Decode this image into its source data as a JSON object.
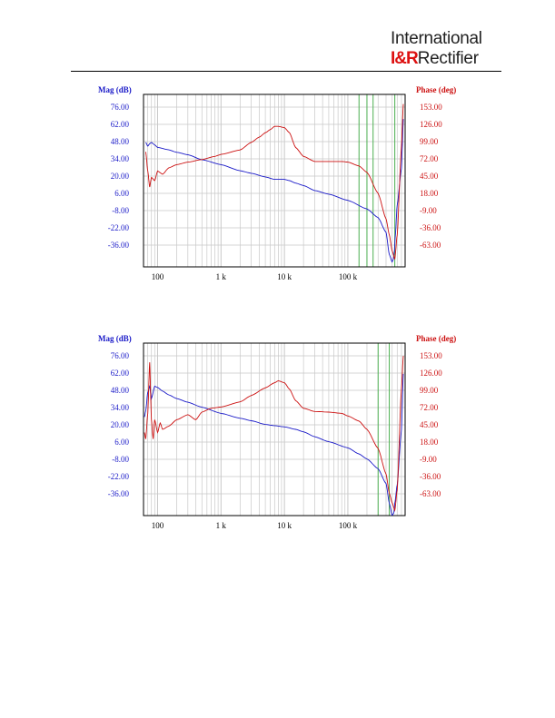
{
  "header": {
    "logo_line1": "International",
    "logo_mark": "I&R",
    "logo_line2_text": "Rectifier"
  },
  "colors": {
    "magnitude": "#1a1ac8",
    "phase": "#cc1111",
    "grid": "#c8c8c8",
    "grid_green": "#4caf50",
    "frame": "#000000"
  },
  "chart_data": [
    {
      "type": "line",
      "xscale": "log",
      "xlim": [
        60,
        800000
      ],
      "x_ticks": [
        {
          "value": 100,
          "label": "100"
        },
        {
          "value": 1000,
          "label": "1 k"
        },
        {
          "value": 10000,
          "label": "10 k"
        },
        {
          "value": 100000,
          "label": "100 k"
        }
      ],
      "left_axis": {
        "title": "Mag (dB)",
        "ticks": [
          "76.00",
          "62.00",
          "48.00",
          "34.00",
          "20.00",
          "6.00",
          "-8.00",
          "-22.00",
          "-36.00"
        ],
        "ylim": [
          -50,
          90
        ]
      },
      "right_axis": {
        "title": "Phase (deg)",
        "ticks": [
          "153.00",
          "126.00",
          "99.00",
          "72.00",
          "45.00",
          "18.00",
          "-9.00",
          "-36.00",
          "-63.00"
        ],
        "ylim": [
          -90,
          180
        ]
      },
      "grid": true,
      "green_lines_x": [
        150000,
        200000,
        250000,
        550000
      ],
      "series": [
        {
          "axis": "left",
          "x": [
            65,
            70,
            75,
            80,
            90,
            100,
            150,
            200,
            300,
            500,
            1000,
            2000,
            3000,
            5000,
            7000,
            10000,
            12000,
            15000,
            20000,
            30000,
            50000,
            100000,
            200000,
            300000,
            400000,
            450000,
            500000,
            520000,
            540000,
            560000,
            600000,
            700000,
            750000
          ],
          "y": [
            51,
            48,
            50,
            51,
            49,
            47,
            45,
            43,
            41,
            37,
            33,
            28,
            26,
            23,
            21,
            21,
            20,
            18,
            16,
            12,
            9,
            4,
            -3,
            -10,
            -22,
            -40,
            -46,
            -44,
            -38,
            -25,
            0,
            30,
            70
          ]
        },
        {
          "axis": "right",
          "x": [
            65,
            70,
            75,
            80,
            90,
            100,
            120,
            150,
            200,
            300,
            500,
            800,
            1000,
            2000,
            3000,
            4000,
            5000,
            6000,
            7000,
            8000,
            10000,
            12000,
            15000,
            20000,
            30000,
            50000,
            80000,
            100000,
            150000,
            200000,
            300000,
            400000,
            450000,
            500000,
            550000,
            600000,
            700000,
            750000
          ],
          "y": [
            90,
            60,
            35,
            50,
            45,
            60,
            55,
            65,
            70,
            74,
            78,
            83,
            86,
            93,
            105,
            113,
            120,
            125,
            130,
            130,
            128,
            120,
            97,
            83,
            75,
            75,
            75,
            74,
            68,
            58,
            25,
            -15,
            -40,
            -65,
            -78,
            -40,
            100,
            165
          ]
        }
      ]
    },
    {
      "type": "line",
      "xscale": "log",
      "xlim": [
        60,
        800000
      ],
      "x_ticks": [
        {
          "value": 100,
          "label": "100"
        },
        {
          "value": 1000,
          "label": "1 k"
        },
        {
          "value": 10000,
          "label": "10 k"
        },
        {
          "value": 100000,
          "label": "100 k"
        }
      ],
      "left_axis": {
        "title": "Mag (dB)",
        "ticks": [
          "76.00",
          "62.00",
          "48.00",
          "34.00",
          "20.00",
          "6.00",
          "-8.00",
          "-22.00",
          "-36.00"
        ],
        "ylim": [
          -50,
          90
        ]
      },
      "right_axis": {
        "title": "Phase (deg)",
        "ticks": [
          "153.00",
          "126.00",
          "99.00",
          "72.00",
          "45.00",
          "18.00",
          "-9.00",
          "-36.00",
          "-63.00"
        ],
        "ylim": [
          -90,
          180
        ]
      },
      "grid": true,
      "green_lines_x": [
        300000,
        450000
      ],
      "series": [
        {
          "axis": "left",
          "x": [
            62,
            65,
            70,
            75,
            80,
            90,
            100,
            120,
            150,
            200,
            300,
            500,
            1000,
            2000,
            3000,
            5000,
            7000,
            10000,
            15000,
            20000,
            30000,
            50000,
            100000,
            150000,
            200000,
            300000,
            400000,
            450000,
            500000,
            530000,
            550000,
            600000,
            700000,
            750000
          ],
          "y": [
            30,
            35,
            50,
            55,
            45,
            55,
            54,
            51,
            48,
            45,
            42,
            38,
            33,
            29,
            27,
            24,
            23,
            22,
            20,
            18,
            14,
            10,
            5,
            0,
            -4,
            -12,
            -24,
            -40,
            -50,
            -48,
            -40,
            -25,
            20,
            65
          ]
        },
        {
          "axis": "right",
          "x": [
            62,
            65,
            70,
            75,
            80,
            85,
            90,
            100,
            110,
            120,
            150,
            200,
            300,
            400,
            500,
            700,
            1000,
            2000,
            3000,
            5000,
            7000,
            8000,
            10000,
            12000,
            15000,
            20000,
            30000,
            50000,
            80000,
            100000,
            150000,
            200000,
            300000,
            400000,
            450000,
            500000,
            550000,
            600000,
            700000,
            750000
          ],
          "y": [
            40,
            30,
            70,
            150,
            60,
            30,
            60,
            40,
            55,
            45,
            50,
            60,
            68,
            60,
            72,
            78,
            80,
            88,
            98,
            110,
            118,
            121,
            118,
            108,
            90,
            78,
            73,
            72,
            70,
            66,
            58,
            45,
            15,
            -25,
            -55,
            -70,
            -82,
            -50,
            110,
            160
          ]
        }
      ]
    }
  ]
}
